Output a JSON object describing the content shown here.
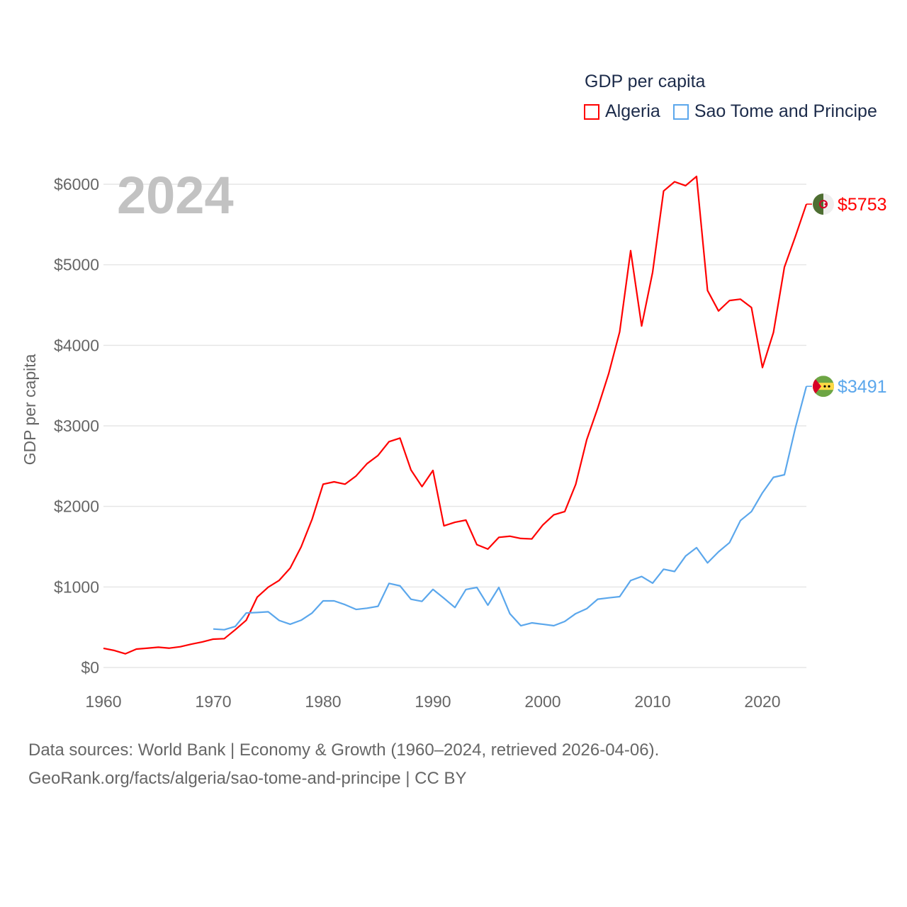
{
  "chart_data": {
    "type": "line",
    "title": "GDP per capita",
    "year_label": "2024",
    "ylabel": "GDP per capita",
    "xlabel": "",
    "xlim": [
      1960,
      2024
    ],
    "ylim": [
      0,
      6000
    ],
    "x_ticks": [
      1960,
      1970,
      1980,
      1990,
      2000,
      2010,
      2020
    ],
    "x_tick_labels": [
      "1960",
      "1970",
      "1980",
      "1990",
      "2000",
      "2010",
      "2020"
    ],
    "y_ticks": [
      0,
      1000,
      2000,
      3000,
      4000,
      5000,
      6000
    ],
    "y_tick_labels": [
      "$0",
      "$1000",
      "$2000",
      "$3000",
      "$4000",
      "$5000",
      "$6000"
    ],
    "grid": true,
    "legend_position": "top-right",
    "series": [
      {
        "name": "Algeria",
        "color": "#ff0000",
        "end_label": "$5753",
        "flag": "algeria-flag",
        "start_year": 1960,
        "values": [
          238,
          211,
          170,
          229,
          240,
          252,
          240,
          258,
          290,
          317,
          352,
          358,
          469,
          587,
          874,
          997,
          1082,
          1234,
          1498,
          1842,
          2276,
          2305,
          2276,
          2378,
          2531,
          2633,
          2804,
          2848,
          2452,
          2246,
          2447,
          1759,
          1803,
          1830,
          1525,
          1470,
          1616,
          1630,
          1602,
          1596,
          1769,
          1895,
          1936,
          2274,
          2827,
          3220,
          3648,
          4167,
          5175,
          4240,
          4907,
          5916,
          6031,
          5982,
          6097,
          4681,
          4427,
          4556,
          4573,
          4469,
          3724,
          4159,
          4971,
          5352,
          5753
        ]
      },
      {
        "name": "Sao Tome and Principe",
        "color": "#5ba7ec",
        "end_label": "$3491",
        "flag": "sao-tome-flag",
        "start_year": 1970,
        "values": [
          478,
          469,
          510,
          677,
          683,
          692,
          584,
          537,
          587,
          677,
          827,
          827,
          780,
          721,
          736,
          760,
          1044,
          1014,
          847,
          821,
          970,
          860,
          745,
          968,
          994,
          774,
          994,
          669,
          519,
          554,
          537,
          519,
          572,
          669,
          730,
          848,
          865,
          880,
          1080,
          1130,
          1047,
          1220,
          1192,
          1383,
          1488,
          1299,
          1436,
          1550,
          1825,
          1936,
          2169,
          2361,
          2393,
          2976,
          3491
        ]
      }
    ]
  },
  "footer": {
    "line1": "Data sources: World Bank | Economy & Growth (1960–2024, retrieved 2026-04-06).",
    "line2": "GeoRank.org/facts/algeria/sao-tome-and-principe | CC BY"
  }
}
